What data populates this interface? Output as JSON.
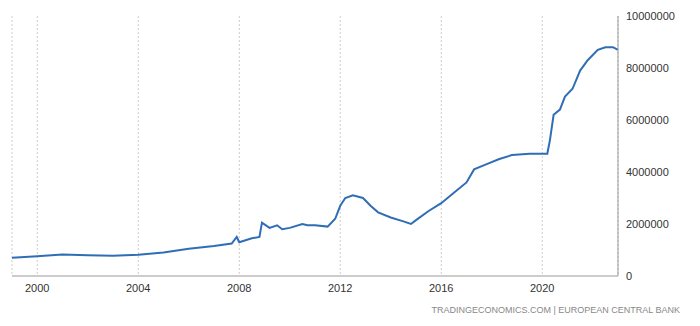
{
  "chart_data": {
    "type": "line",
    "annotations": [
      "TRADINGECONOMICS.COM | EUROPEAN CENTRAL BANK"
    ],
    "x": [
      1999.0,
      2000.0,
      2001.0,
      2002.0,
      2003.0,
      2004.0,
      2005.0,
      2006.0,
      2007.0,
      2007.7,
      2007.9,
      2008.0,
      2008.5,
      2008.8,
      2008.9,
      2009.2,
      2009.5,
      2009.7,
      2010.0,
      2010.5,
      2010.7,
      2011.0,
      2011.5,
      2011.8,
      2012.0,
      2012.2,
      2012.5,
      2012.9,
      2013.2,
      2013.5,
      2014.0,
      2014.5,
      2014.8,
      2015.0,
      2015.5,
      2016.0,
      2016.5,
      2017.0,
      2017.3,
      2017.8,
      2018.3,
      2018.8,
      2019.5,
      2020.0,
      2020.2,
      2020.3,
      2020.45,
      2020.7,
      2020.9,
      2021.2,
      2021.5,
      2021.8,
      2022.2,
      2022.5,
      2022.8,
      2023.0
    ],
    "values": [
      700000,
      760000,
      830000,
      800000,
      780000,
      820000,
      900000,
      1050000,
      1150000,
      1250000,
      1500000,
      1300000,
      1450000,
      1500000,
      2050000,
      1850000,
      1950000,
      1800000,
      1850000,
      2000000,
      1950000,
      1950000,
      1900000,
      2200000,
      2700000,
      3000000,
      3100000,
      3000000,
      2700000,
      2450000,
      2250000,
      2100000,
      2000000,
      2150000,
      2500000,
      2800000,
      3200000,
      3600000,
      4100000,
      4300000,
      4500000,
      4650000,
      4700000,
      4700000,
      4700000,
      5200000,
      6200000,
      6400000,
      6900000,
      7200000,
      7900000,
      8300000,
      8700000,
      8800000,
      8800000,
      8700000
    ],
    "color": "#2f6eb5",
    "xlim": [
      1999,
      2023
    ],
    "xticks": [
      2000,
      2004,
      2008,
      2012,
      2016,
      2020
    ],
    "ylim": [
      0,
      10000000
    ],
    "yticks": [
      0,
      2000000,
      4000000,
      6000000,
      8000000,
      10000000
    ],
    "grid": true
  }
}
